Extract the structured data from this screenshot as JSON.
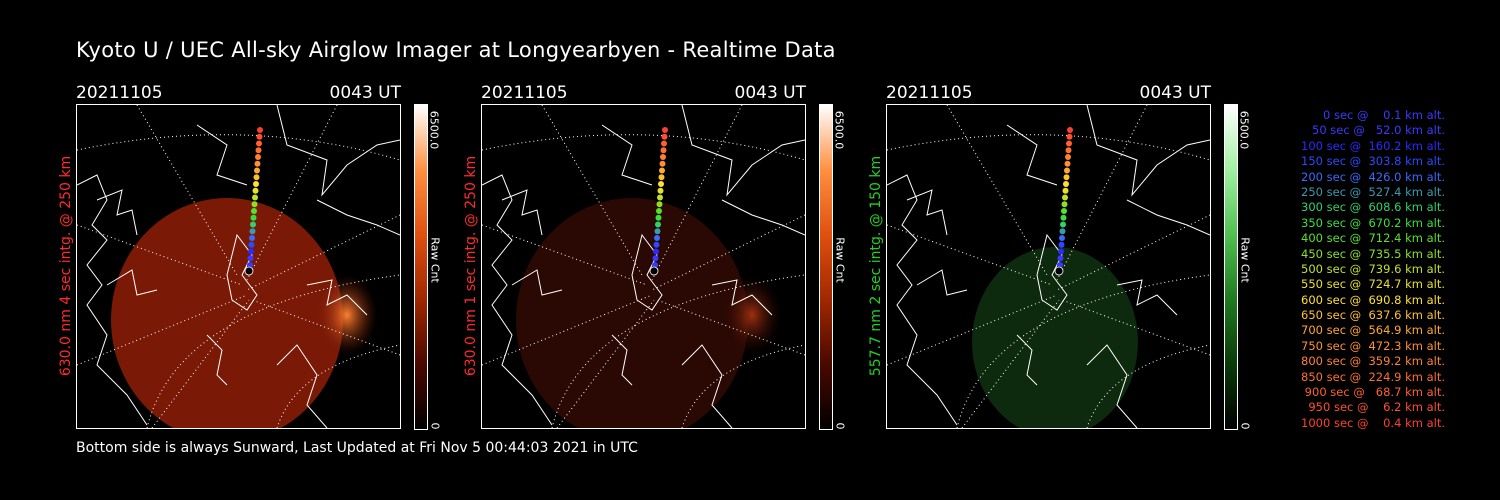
{
  "title": "Kyoto U / UEC All-sky Airglow Imager at Longyearbyen - Realtime Data",
  "footer": "Bottom side is always Sunward, Last Updated at Fri Nov  5 00:44:03 2021 in UTC",
  "panels": [
    {
      "date": "20211105",
      "time": "0043 UT",
      "ylabel": "630.0 nm 4 sec intg. @ 250 km",
      "ylabel_color": "#ff2a2a",
      "cb_max": "6500.0",
      "cb_unit": "Raw Cnt",
      "cb_min": "0",
      "scheme": "red"
    },
    {
      "date": "20211105",
      "time": "0043 UT",
      "ylabel": "630.0 nm 1 sec intg. @ 250 km",
      "ylabel_color": "#ff2a2a",
      "cb_max": "6500.0",
      "cb_unit": "Raw Cnt",
      "cb_min": "0",
      "scheme": "dimred"
    },
    {
      "date": "20211105",
      "time": "0043 UT",
      "ylabel": "557.7 nm 2 sec intg. @ 150 km",
      "ylabel_color": "#22d022",
      "cb_max": "6500.0",
      "cb_unit": "Raw Cnt",
      "cb_min": "0",
      "scheme": "green"
    }
  ],
  "legend": [
    {
      "text": "   0 sec @    0.1 km alt.",
      "color": "#3a3aff"
    },
    {
      "text": "  50 sec @   52.0 km alt.",
      "color": "#3a3aff"
    },
    {
      "text": " 100 sec @  160.2 km alt.",
      "color": "#2a2aff"
    },
    {
      "text": " 150 sec @  303.8 km alt.",
      "color": "#2a4aff"
    },
    {
      "text": " 200 sec @  426.0 km alt.",
      "color": "#3a6aff"
    },
    {
      "text": " 250 sec @  527.4 km alt.",
      "color": "#3a9ab0"
    },
    {
      "text": " 300 sec @  608.6 km alt.",
      "color": "#30d070"
    },
    {
      "text": " 350 sec @  670.2 km alt.",
      "color": "#3ae03a"
    },
    {
      "text": " 400 sec @  712.4 km alt.",
      "color": "#5ae02a"
    },
    {
      "text": " 450 sec @  735.5 km alt.",
      "color": "#8ae02a"
    },
    {
      "text": " 500 sec @  739.6 km alt.",
      "color": "#c0e02a"
    },
    {
      "text": " 550 sec @  724.7 km alt.",
      "color": "#e8e02a"
    },
    {
      "text": " 600 sec @  690.8 km alt.",
      "color": "#ffe030"
    },
    {
      "text": " 650 sec @  637.6 km alt.",
      "color": "#ffc030"
    },
    {
      "text": " 700 sec @  564.9 km alt.",
      "color": "#ffa830"
    },
    {
      "text": " 750 sec @  472.3 km alt.",
      "color": "#ff9030"
    },
    {
      "text": " 800 sec @  359.2 km alt.",
      "color": "#ff8030"
    },
    {
      "text": " 850 sec @  224.9 km alt.",
      "color": "#ff7030"
    },
    {
      "text": " 900 sec @   68.7 km alt.",
      "color": "#ff6030"
    },
    {
      "text": " 950 sec @    6.2 km alt.",
      "color": "#ff5030"
    },
    {
      "text": "1000 sec @    0.4 km alt.",
      "color": "#ff4030"
    }
  ]
}
